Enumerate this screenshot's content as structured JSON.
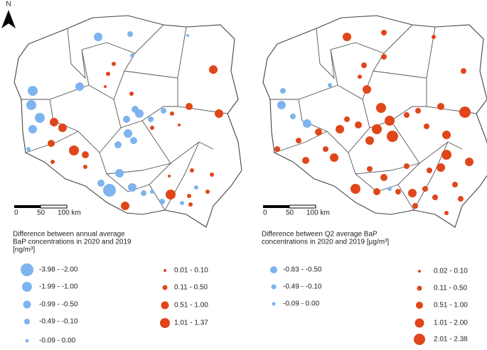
{
  "north": "N",
  "maps": [
    {
      "scale": [
        "0",
        "50",
        "100 km"
      ],
      "legend": {
        "title": [
          "Difference between annual average",
          "BaP concentrations in 2020 and 2019",
          "[ng/m³]"
        ],
        "negative": [
          "-3.98 - -2.00",
          "-1.99 - -1.00",
          "-0.99 - -0.50",
          "-0.49 - -0.10",
          "-0.09 - 0.00"
        ],
        "positive": [
          "0.01 - 0.10",
          "0.11 - 0.50",
          "0.51 - 1.00",
          "1.01 - 1.37"
        ]
      }
    },
    {
      "scale": [
        "0",
        "50",
        "100 km"
      ],
      "legend": {
        "title": [
          "Difference between Q2 average BaP",
          "concentrations in 2020 and 2019 [µg/m³]"
        ],
        "negative": [
          "-0.83 - -0.50",
          "-0.49 - -0.10",
          "-0.09 - 0.00"
        ],
        "positive": [
          "0.02 - 0.10",
          "0.11 - 0.50",
          "0.51 - 1.00",
          "1.01 - 2.00",
          "2.01 - 2.38"
        ]
      }
    }
  ]
}
